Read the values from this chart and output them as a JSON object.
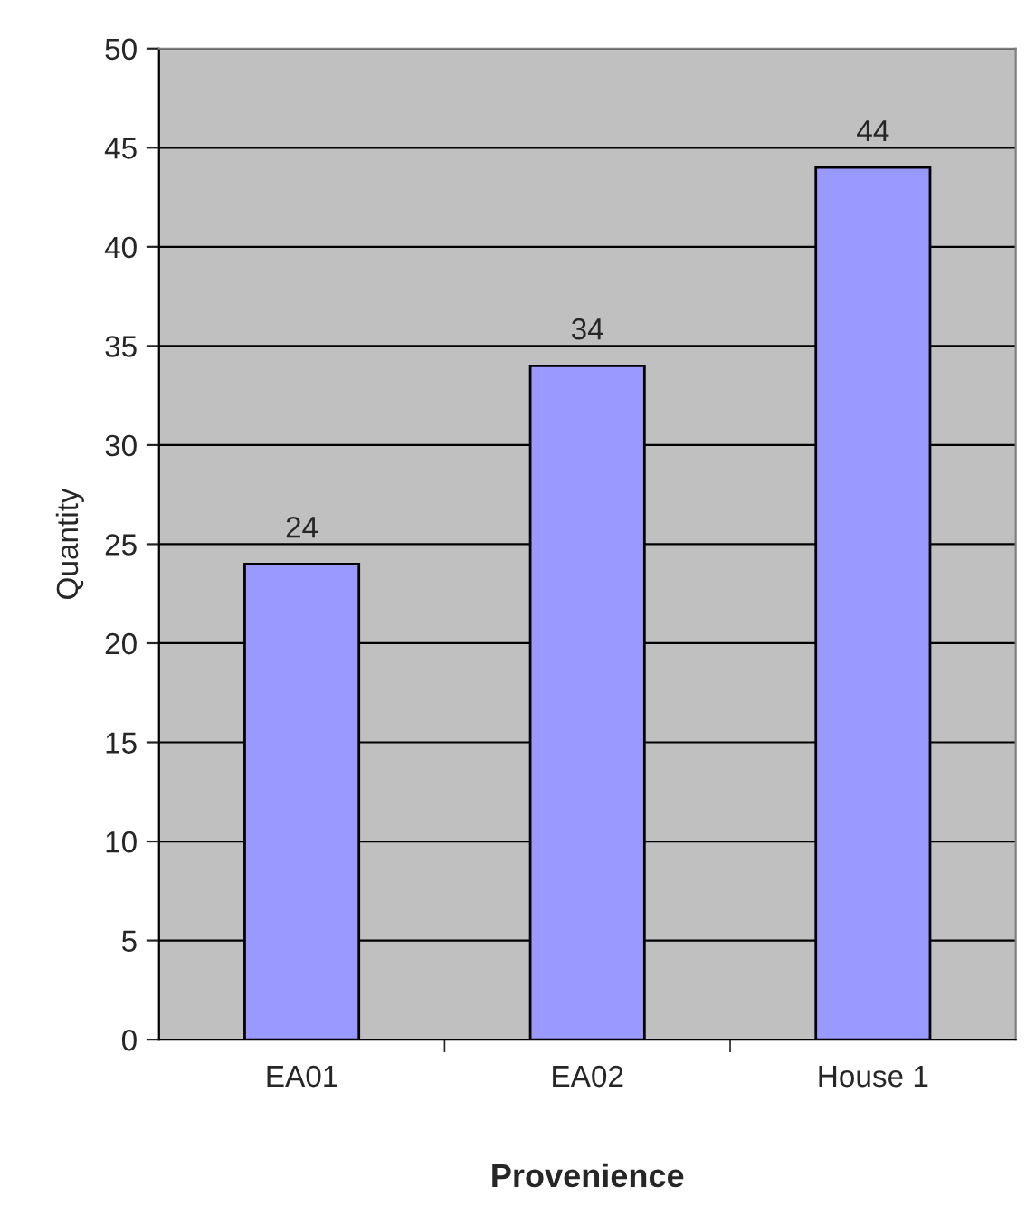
{
  "chart_data": {
    "type": "bar",
    "xlabel": "Provenience",
    "ylabel": "Quantity",
    "categories": [
      "EA01",
      "EA02",
      "House 1"
    ],
    "series": [
      {
        "color": "#9999ff",
        "values": [
          24,
          34,
          44
        ]
      }
    ],
    "data_labels": true,
    "ylim": [
      0,
      50
    ],
    "yticks": [
      0,
      5,
      10,
      15,
      20,
      25,
      30,
      35,
      40,
      45,
      50
    ],
    "grid": "y"
  }
}
